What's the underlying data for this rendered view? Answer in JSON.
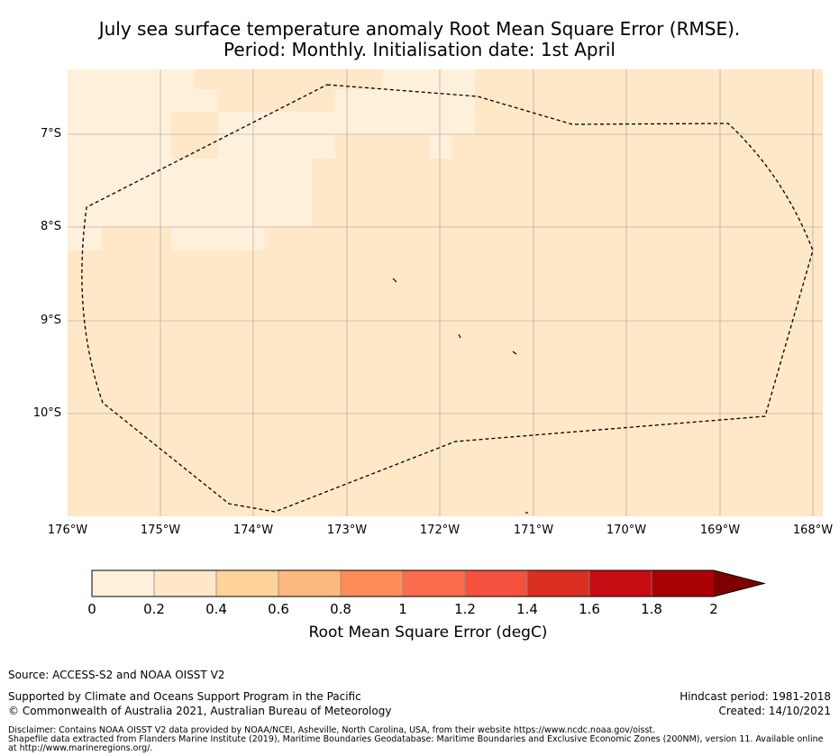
{
  "title": {
    "line1": "July sea surface temperature anomaly Root Mean Square Error (RMSE).",
    "line2": "Period: Monthly. Initialisation date: 1st April"
  },
  "map": {
    "lon_ticks": [
      "176°W",
      "175°W",
      "174°W",
      "173°W",
      "172°W",
      "171°W",
      "170°W",
      "169°W",
      "168°W"
    ],
    "lat_ticks": [
      "7°S",
      "8°S",
      "9°S",
      "10°S"
    ],
    "colors": {
      "background": "#fee8c8",
      "low_bin": "#fff0db",
      "boundary": "#000000",
      "gridline": "#9a9a9a"
    },
    "boundary_style": "dashed"
  },
  "colorbar": {
    "ticks": [
      "0",
      "0.2",
      "0.4",
      "0.6",
      "0.8",
      "1",
      "1.2",
      "1.4",
      "1.6",
      "1.8",
      "2"
    ],
    "colors": [
      "#fff0db",
      "#fee6c6",
      "#fed39c",
      "#fdb97d",
      "#fc8d59",
      "#fb6c4c",
      "#f4513e",
      "#db2f21",
      "#c70c13",
      "#a90006",
      "#7f0000"
    ],
    "label": "Root Mean Square Error (degC)",
    "extend": "max"
  },
  "footer": {
    "source": "Source: ACCESS-S2 and NOAA OISST V2",
    "supported": "Supported by Climate and Oceans Support Program in the Pacific",
    "copyright": "© Commonwealth of Australia 2021, Australian Bureau of Meteorology",
    "hindcast": "Hindcast period: 1981-2018",
    "created": "Created: 14/10/2021",
    "disclaimer": "Disclaimer: Contains NOAA OISST V2 data provided by NOAA/NCEI, Asheville, North Carolina, USA, from their website https://www.ncdc.noaa.gov/oisst.\nShapefile data extracted from Flanders Marine Institute (2019), Maritime Boundaries Geodatabase: Maritime Boundaries and Exclusive Economic Zones (200NM), version 11. Available online at http://www.marineregions.org/."
  }
}
